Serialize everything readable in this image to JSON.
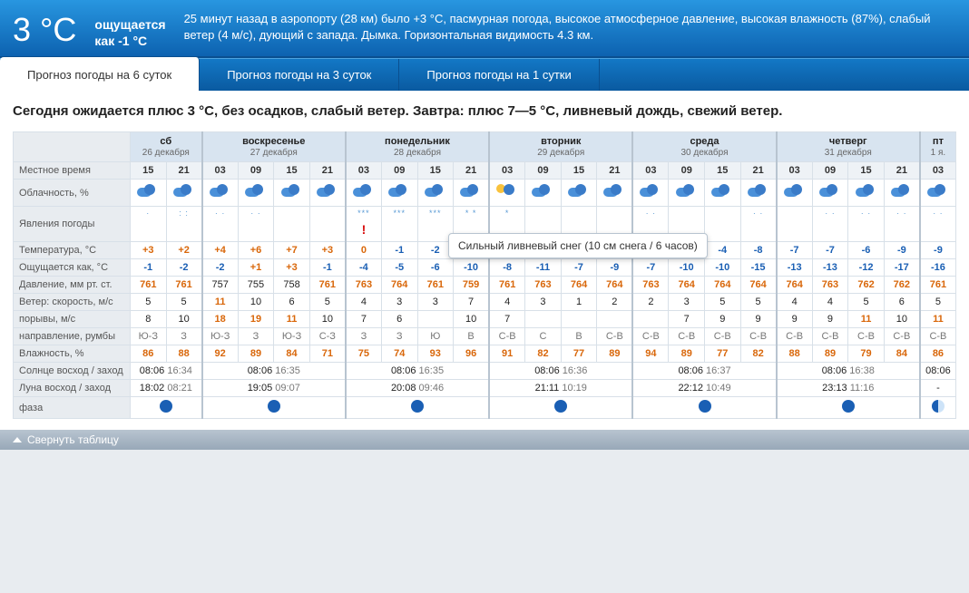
{
  "hero": {
    "temp": "3 °C",
    "feels_label": "ощущается",
    "feels_value": "как -1 °C",
    "desc": "25 минут назад в аэропорту (28 км) было +3 °C, пасмурная погода, высокое атмосферное давление, высокая влажность (87%), слабый ветер (4 м/с), дующий с запада. Дымка. Горизонтальная видимость 4.3 км."
  },
  "tabs": [
    {
      "label": "Прогноз погоды на 6 суток",
      "active": true
    },
    {
      "label": "Прогноз погоды на 3 суток",
      "active": false
    },
    {
      "label": "Прогноз погоды на 1 сутки",
      "active": false
    }
  ],
  "summary": "Сегодня ожидается плюс 3 °C, без осадков, слабый ветер. Завтра: плюс 7—5 °C, ливневый дождь, свежий ветер.",
  "tooltip": "Сильный ливневый снег (10 см снега / 6 часов)",
  "collapse_label": "Свернуть таблицу",
  "rows": {
    "local_time": "Местное время",
    "cloudiness": "Облачность, %",
    "phenomena": "Явления погоды",
    "temp": "Температура, °C",
    "feels": "Ощущается как, °C",
    "pressure": "Давление, мм рт. ст.",
    "wind_speed": "Ветер: скорость, м/с",
    "gusts": "порывы, м/с",
    "direction": "направление, румбы",
    "humidity": "Влажность, %",
    "sun": "Солнце восход / заход",
    "moon": "Луна восход / заход",
    "phase": "фаза"
  },
  "days": [
    {
      "name": "сб",
      "date": "26 декабря",
      "cols": 2,
      "times": [
        "15",
        "21"
      ]
    },
    {
      "name": "воскресенье",
      "date": "27 декабря",
      "cols": 4,
      "times": [
        "03",
        "09",
        "15",
        "21"
      ]
    },
    {
      "name": "понедельник",
      "date": "28 декабря",
      "cols": 4,
      "times": [
        "03",
        "09",
        "15",
        "21"
      ]
    },
    {
      "name": "вторник",
      "date": "29 декабря",
      "cols": 4,
      "times": [
        "03",
        "09",
        "15",
        "21"
      ]
    },
    {
      "name": "среда",
      "date": "30 декабря",
      "cols": 4,
      "times": [
        "03",
        "09",
        "15",
        "21"
      ]
    },
    {
      "name": "четверг",
      "date": "31 декабря",
      "cols": 4,
      "times": [
        "03",
        "09",
        "15",
        "21"
      ]
    },
    {
      "name": "пт",
      "date": "1 я.",
      "cols": 1,
      "times": [
        "03"
      ]
    }
  ],
  "cloud_icons": [
    "c",
    "c",
    "c",
    "c",
    "c",
    "c",
    "c",
    "c",
    "c",
    "c",
    "s",
    "c",
    "c",
    "c",
    "c",
    "c",
    "c",
    "c",
    "c",
    "c",
    "c",
    "c",
    "c"
  ],
  "precip": [
    "·",
    ": :",
    "· ·",
    "· ·",
    "",
    "",
    "***",
    "***",
    "***",
    "* *",
    "*",
    "",
    "",
    "",
    "· ·",
    "",
    "",
    "· ·",
    "",
    "· ·",
    "· ·",
    "· ·",
    "· ·"
  ],
  "alert_col": 6,
  "temp_row": [
    {
      "v": "+3",
      "c": "orange"
    },
    {
      "v": "+2",
      "c": "orange"
    },
    {
      "v": "+4",
      "c": "orange"
    },
    {
      "v": "+6",
      "c": "orange"
    },
    {
      "v": "+7",
      "c": "orange"
    },
    {
      "v": "+3",
      "c": "orange"
    },
    {
      "v": "0",
      "c": "orange"
    },
    {
      "v": "-1",
      "c": "blue"
    },
    {
      "v": "-2",
      "c": "blue"
    },
    {
      "v": "-3",
      "c": "blue"
    },
    {
      "v": "-3",
      "c": "blue"
    },
    {
      "v": "-6",
      "c": "blue"
    },
    {
      "v": "-3",
      "c": "blue"
    },
    {
      "v": "-6",
      "c": "blue"
    },
    {
      "v": "-4",
      "c": "blue"
    },
    {
      "v": "-5",
      "c": "blue"
    },
    {
      "v": "-4",
      "c": "blue"
    },
    {
      "v": "-8",
      "c": "blue"
    },
    {
      "v": "-7",
      "c": "blue"
    },
    {
      "v": "-7",
      "c": "blue"
    },
    {
      "v": "-6",
      "c": "blue"
    },
    {
      "v": "-9",
      "c": "blue"
    },
    {
      "v": "-9",
      "c": "blue"
    }
  ],
  "feels_row": [
    {
      "v": "-1",
      "c": "blue"
    },
    {
      "v": "-2",
      "c": "blue"
    },
    {
      "v": "-2",
      "c": "blue"
    },
    {
      "v": "+1",
      "c": "orange"
    },
    {
      "v": "+3",
      "c": "orange"
    },
    {
      "v": "-1",
      "c": "blue"
    },
    {
      "v": "-4",
      "c": "blue"
    },
    {
      "v": "-5",
      "c": "blue"
    },
    {
      "v": "-6",
      "c": "blue"
    },
    {
      "v": "-10",
      "c": "blue"
    },
    {
      "v": "-8",
      "c": "blue"
    },
    {
      "v": "-11",
      "c": "blue"
    },
    {
      "v": "-7",
      "c": "blue"
    },
    {
      "v": "-9",
      "c": "blue"
    },
    {
      "v": "-7",
      "c": "blue"
    },
    {
      "v": "-10",
      "c": "blue"
    },
    {
      "v": "-10",
      "c": "blue"
    },
    {
      "v": "-15",
      "c": "blue"
    },
    {
      "v": "-13",
      "c": "blue"
    },
    {
      "v": "-13",
      "c": "blue"
    },
    {
      "v": "-12",
      "c": "blue"
    },
    {
      "v": "-17",
      "c": "blue"
    },
    {
      "v": "-16",
      "c": "blue"
    }
  ],
  "pressure_row": [
    {
      "v": "761",
      "c": "orange"
    },
    {
      "v": "761",
      "c": "orange"
    },
    {
      "v": "757",
      "c": "black"
    },
    {
      "v": "755",
      "c": "black"
    },
    {
      "v": "758",
      "c": "black"
    },
    {
      "v": "761",
      "c": "orange"
    },
    {
      "v": "763",
      "c": "orange"
    },
    {
      "v": "764",
      "c": "orange"
    },
    {
      "v": "761",
      "c": "orange"
    },
    {
      "v": "759",
      "c": "orange"
    },
    {
      "v": "761",
      "c": "orange"
    },
    {
      "v": "763",
      "c": "orange"
    },
    {
      "v": "764",
      "c": "orange"
    },
    {
      "v": "764",
      "c": "orange"
    },
    {
      "v": "763",
      "c": "orange"
    },
    {
      "v": "764",
      "c": "orange"
    },
    {
      "v": "764",
      "c": "orange"
    },
    {
      "v": "764",
      "c": "orange"
    },
    {
      "v": "764",
      "c": "orange"
    },
    {
      "v": "763",
      "c": "orange"
    },
    {
      "v": "762",
      "c": "orange"
    },
    {
      "v": "762",
      "c": "orange"
    },
    {
      "v": "761",
      "c": "orange"
    }
  ],
  "wind_row": [
    {
      "v": "5",
      "c": "black"
    },
    {
      "v": "5",
      "c": "black"
    },
    {
      "v": "11",
      "c": "orange"
    },
    {
      "v": "10",
      "c": "black"
    },
    {
      "v": "6",
      "c": "black"
    },
    {
      "v": "5",
      "c": "black"
    },
    {
      "v": "4",
      "c": "black"
    },
    {
      "v": "3",
      "c": "black"
    },
    {
      "v": "3",
      "c": "black"
    },
    {
      "v": "7",
      "c": "black"
    },
    {
      "v": "4",
      "c": "black"
    },
    {
      "v": "3",
      "c": "black"
    },
    {
      "v": "1",
      "c": "black"
    },
    {
      "v": "2",
      "c": "black"
    },
    {
      "v": "2",
      "c": "black"
    },
    {
      "v": "3",
      "c": "black"
    },
    {
      "v": "5",
      "c": "black"
    },
    {
      "v": "5",
      "c": "black"
    },
    {
      "v": "4",
      "c": "black"
    },
    {
      "v": "4",
      "c": "black"
    },
    {
      "v": "5",
      "c": "black"
    },
    {
      "v": "6",
      "c": "black"
    },
    {
      "v": "5",
      "c": "black"
    }
  ],
  "gust_row": [
    {
      "v": "8",
      "c": "black"
    },
    {
      "v": "10",
      "c": "black"
    },
    {
      "v": "18",
      "c": "orange"
    },
    {
      "v": "19",
      "c": "orange"
    },
    {
      "v": "11",
      "c": "orange"
    },
    {
      "v": "10",
      "c": "black"
    },
    {
      "v": "7",
      "c": "black"
    },
    {
      "v": "6",
      "c": "black"
    },
    {
      "v": "",
      "c": "black"
    },
    {
      "v": "10",
      "c": "black"
    },
    {
      "v": "7",
      "c": "black"
    },
    {
      "v": "",
      "c": "black"
    },
    {
      "v": "",
      "c": "black"
    },
    {
      "v": "",
      "c": "black"
    },
    {
      "v": "",
      "c": "black"
    },
    {
      "v": "7",
      "c": "black"
    },
    {
      "v": "9",
      "c": "black"
    },
    {
      "v": "9",
      "c": "black"
    },
    {
      "v": "9",
      "c": "black"
    },
    {
      "v": "9",
      "c": "black"
    },
    {
      "v": "11",
      "c": "orange"
    },
    {
      "v": "10",
      "c": "black"
    },
    {
      "v": "11",
      "c": "orange"
    }
  ],
  "dir_row": [
    "Ю-З",
    "З",
    "Ю-З",
    "З",
    "Ю-З",
    "С-З",
    "З",
    "З",
    "Ю",
    "В",
    "С-В",
    "С",
    "В",
    "С-В",
    "С-В",
    "С-В",
    "С-В",
    "С-В",
    "С-В",
    "С-В",
    "С-В",
    "С-В",
    "С-В"
  ],
  "humidity_row": [
    {
      "v": "86",
      "c": "orange"
    },
    {
      "v": "88",
      "c": "orange"
    },
    {
      "v": "92",
      "c": "orange"
    },
    {
      "v": "89",
      "c": "orange"
    },
    {
      "v": "84",
      "c": "orange"
    },
    {
      "v": "71",
      "c": "orange"
    },
    {
      "v": "75",
      "c": "orange"
    },
    {
      "v": "74",
      "c": "orange"
    },
    {
      "v": "93",
      "c": "orange"
    },
    {
      "v": "96",
      "c": "orange"
    },
    {
      "v": "91",
      "c": "orange"
    },
    {
      "v": "82",
      "c": "orange"
    },
    {
      "v": "77",
      "c": "orange"
    },
    {
      "v": "89",
      "c": "orange"
    },
    {
      "v": "94",
      "c": "orange"
    },
    {
      "v": "89",
      "c": "orange"
    },
    {
      "v": "77",
      "c": "orange"
    },
    {
      "v": "82",
      "c": "orange"
    },
    {
      "v": "88",
      "c": "orange"
    },
    {
      "v": "89",
      "c": "orange"
    },
    {
      "v": "79",
      "c": "orange"
    },
    {
      "v": "84",
      "c": "orange"
    },
    {
      "v": "86",
      "c": "orange"
    }
  ],
  "sun_row": [
    {
      "rise": "08:06",
      "set": "16:34"
    },
    {
      "rise": "08:06",
      "set": "16:35"
    },
    {
      "rise": "08:06",
      "set": "16:35"
    },
    {
      "rise": "08:06",
      "set": "16:36"
    },
    {
      "rise": "08:06",
      "set": "16:37"
    },
    {
      "rise": "08:06",
      "set": "16:38"
    },
    {
      "rise": "08:06",
      "set": ""
    }
  ],
  "moon_row": [
    {
      "rise": "18:02",
      "set": "08:21"
    },
    {
      "rise": "19:05",
      "set": "09:07"
    },
    {
      "rise": "20:08",
      "set": "09:46"
    },
    {
      "rise": "21:11",
      "set": "10:19"
    },
    {
      "rise": "22:12",
      "set": "10:49"
    },
    {
      "rise": "23:13",
      "set": "11:16"
    },
    {
      "rise": "-",
      "set": ""
    }
  ],
  "phase_row": [
    "full",
    "full",
    "full",
    "full",
    "full",
    "full",
    "half"
  ]
}
